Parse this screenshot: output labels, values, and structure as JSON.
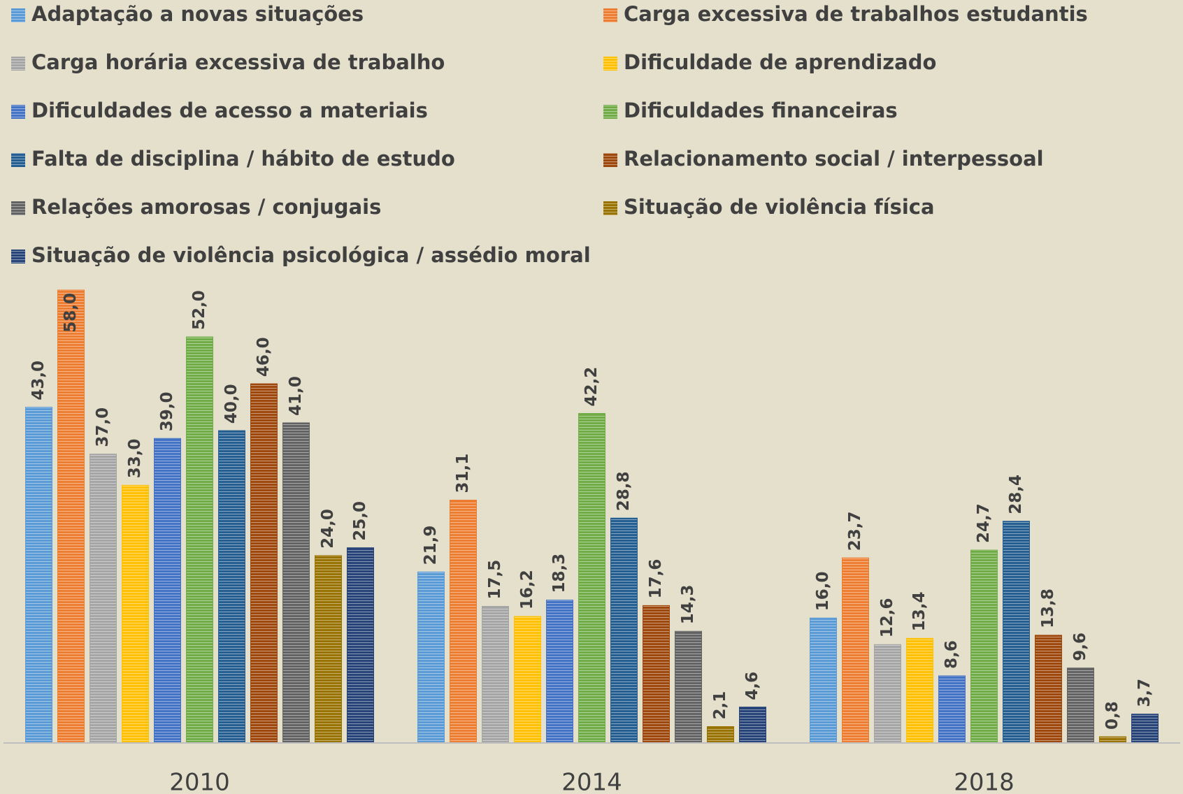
{
  "chart_data": {
    "type": "bar",
    "categories": [
      "2010",
      "2014",
      "2018"
    ],
    "series": [
      {
        "name": "Adaptação a novas situações",
        "color": "#5b9bd5",
        "values": [
          43.0,
          21.9,
          16.0
        ],
        "value_labels": [
          "43,0",
          "21,9",
          "16,0"
        ]
      },
      {
        "name": "Carga excessiva de trabalhos estudantis",
        "color": "#ed7d31",
        "values": [
          58.0,
          31.1,
          23.7
        ],
        "value_labels": [
          "58,0",
          "31,1",
          "23,7"
        ]
      },
      {
        "name": "Carga horária excessiva de trabalho",
        "color": "#a5a5a5",
        "values": [
          37.0,
          17.5,
          12.6
        ],
        "value_labels": [
          "37,0",
          "17,5",
          "12,6"
        ]
      },
      {
        "name": "Dificuldade de aprendizado",
        "color": "#ffc000",
        "values": [
          33.0,
          16.2,
          13.4
        ],
        "value_labels": [
          "33,0",
          "16,2",
          "13,4"
        ]
      },
      {
        "name": "Dificuldades de acesso a materiais",
        "color": "#4472c4",
        "values": [
          39.0,
          18.3,
          8.6
        ],
        "value_labels": [
          "39,0",
          "18,3",
          "8,6"
        ]
      },
      {
        "name": "Dificuldades financeiras",
        "color": "#70ad47",
        "values": [
          52.0,
          42.2,
          24.7
        ],
        "value_labels": [
          "52,0",
          "42,2",
          "24,7"
        ]
      },
      {
        "name": "Falta de disciplina / hábito de estudo",
        "color": "#255e91",
        "values": [
          40.0,
          28.8,
          28.4
        ],
        "value_labels": [
          "40,0",
          "28,8",
          "28,4"
        ]
      },
      {
        "name": "Relacionamento social / interpessoal",
        "color": "#9e480e",
        "values": [
          46.0,
          17.6,
          13.8
        ],
        "value_labels": [
          "46,0",
          "17,6",
          "13,8"
        ]
      },
      {
        "name": "Relações amorosas / conjugais",
        "color": "#636363",
        "values": [
          41.0,
          14.3,
          9.6
        ],
        "value_labels": [
          "41,0",
          "14,3",
          "9,6"
        ]
      },
      {
        "name": "Situação de violência física",
        "color": "#997300",
        "values": [
          24.0,
          2.1,
          0.8
        ],
        "value_labels": [
          "24,0",
          "2,1",
          "0,8"
        ]
      },
      {
        "name": "Situação de violência psicológica / assédio moral",
        "color": "#264478",
        "values": [
          25.0,
          4.6,
          3.7
        ],
        "value_labels": [
          "25,0",
          "4,6",
          "3,7"
        ]
      }
    ],
    "legend": "top"
  }
}
